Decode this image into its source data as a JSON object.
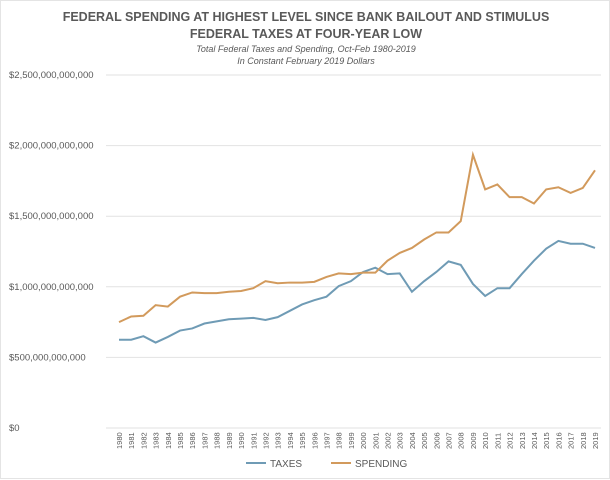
{
  "chart_data": {
    "type": "line",
    "title": "FEDERAL SPENDING AT HIGHEST LEVEL SINCE BANK BAILOUT AND STIMULUS",
    "title2": "FEDERAL TAXES AT FOUR-YEAR LOW",
    "subtitle": "Total Federal Taxes and Spending, Oct-Feb 1980-2019",
    "subtitle2": "In Constant February 2019 Dollars",
    "ylim": [
      0,
      2500000000000
    ],
    "yticks": [
      "$0",
      "$500,000,000,000",
      "$1,000,000,000,000",
      "$1,500,000,000,000",
      "$2,000,000,000,000",
      "$2,500,000,000,000"
    ],
    "ytick_values": [
      0,
      500000000000,
      1000000000000,
      1500000000000,
      2000000000000,
      2500000000000
    ],
    "grid": true,
    "legend_placement": "bottom",
    "x": [
      1980,
      1981,
      1982,
      1983,
      1984,
      1985,
      1986,
      1987,
      1988,
      1989,
      1990,
      1991,
      1992,
      1993,
      1994,
      1995,
      1996,
      1997,
      1998,
      1999,
      2000,
      2001,
      2002,
      2003,
      2004,
      2005,
      2006,
      2007,
      2008,
      2009,
      2010,
      2011,
      2012,
      2013,
      2014,
      2015,
      2016,
      2017,
      2018,
      2019
    ],
    "value_unit_note": "values in billions of dollars",
    "series": [
      {
        "name": "TAXES",
        "color": "#6f9bb5",
        "values": [
          625,
          625,
          650,
          605,
          645,
          690,
          705,
          740,
          755,
          770,
          775,
          780,
          765,
          785,
          830,
          875,
          905,
          930,
          1005,
          1040,
          1105,
          1135,
          1090,
          1095,
          965,
          1040,
          1105,
          1180,
          1155,
          1020,
          935,
          990,
          990,
          1090,
          1185,
          1270,
          1325,
          1305,
          1305,
          1275
        ]
      },
      {
        "name": "SPENDING",
        "color": "#d29a5c",
        "values": [
          750,
          790,
          795,
          870,
          860,
          930,
          960,
          955,
          955,
          965,
          970,
          990,
          1040,
          1025,
          1030,
          1030,
          1035,
          1070,
          1095,
          1090,
          1100,
          1100,
          1185,
          1240,
          1275,
          1335,
          1385,
          1385,
          1465,
          1935,
          1690,
          1725,
          1635,
          1635,
          1590,
          1690,
          1705,
          1665,
          1700,
          1825
        ]
      }
    ]
  }
}
